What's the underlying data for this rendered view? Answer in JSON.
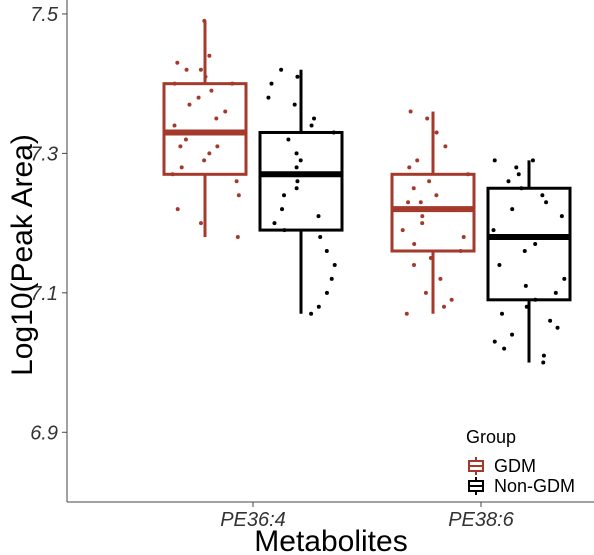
{
  "chart_data": {
    "type": "box",
    "xlabel": "Metabolites",
    "ylabel": "Log10(Peak Area)",
    "categories": [
      "PE36:4",
      "PE38:6"
    ],
    "ylim": [
      6.8,
      7.52
    ],
    "yticks": [
      6.9,
      7.1,
      7.3,
      7.5
    ],
    "grid": false,
    "legend": {
      "title": "Group",
      "placement": "bottom-right",
      "entries": [
        "GDM",
        "Non-GDM"
      ]
    },
    "series": [
      {
        "name": "GDM",
        "color": "#a33a2c",
        "boxes": [
          {
            "category": "PE36:4",
            "whisker_low": 7.18,
            "q1": 7.27,
            "median": 7.33,
            "q3": 7.4,
            "whisker_high": 7.49,
            "points": [
              7.49,
              7.44,
              7.43,
              7.42,
              7.42,
              7.41,
              7.4,
              7.4,
              7.39,
              7.38,
              7.37,
              7.36,
              7.35,
              7.34,
              7.33,
              7.32,
              7.31,
              7.31,
              7.3,
              7.29,
              7.28,
              7.27,
              7.26,
              7.24,
              7.22,
              7.2,
              7.18
            ]
          },
          {
            "category": "PE38:6",
            "whisker_low": 7.07,
            "q1": 7.16,
            "median": 7.22,
            "q3": 7.27,
            "whisker_high": 7.36,
            "points": [
              7.36,
              7.35,
              7.33,
              7.31,
              7.29,
              7.28,
              7.27,
              7.26,
              7.25,
              7.24,
              7.23,
              7.23,
              7.22,
              7.21,
              7.2,
              7.19,
              7.18,
              7.17,
              7.16,
              7.15,
              7.14,
              7.12,
              7.1,
              7.09,
              7.08,
              7.07
            ]
          }
        ]
      },
      {
        "name": "Non-GDM",
        "color": "#000000",
        "boxes": [
          {
            "category": "PE36:4",
            "whisker_low": 7.07,
            "q1": 7.19,
            "median": 7.27,
            "q3": 7.33,
            "whisker_high": 7.42,
            "points": [
              7.42,
              7.41,
              7.4,
              7.38,
              7.37,
              7.35,
              7.34,
              7.33,
              7.32,
              7.3,
              7.29,
              7.28,
              7.27,
              7.26,
              7.25,
              7.24,
              7.22,
              7.21,
              7.2,
              7.19,
              7.18,
              7.16,
              7.14,
              7.12,
              7.1,
              7.08,
              7.07
            ]
          },
          {
            "category": "PE38:6",
            "whisker_low": 7.0,
            "q1": 7.09,
            "median": 7.18,
            "q3": 7.25,
            "whisker_high": 7.29,
            "points": [
              7.29,
              7.29,
              7.28,
              7.27,
              7.26,
              7.25,
              7.24,
              7.23,
              7.22,
              7.21,
              7.19,
              7.18,
              7.17,
              7.16,
              7.14,
              7.12,
              7.11,
              7.1,
              7.09,
              7.08,
              7.07,
              7.06,
              7.05,
              7.04,
              7.03,
              7.02,
              7.01,
              7.0
            ]
          }
        ]
      }
    ]
  }
}
